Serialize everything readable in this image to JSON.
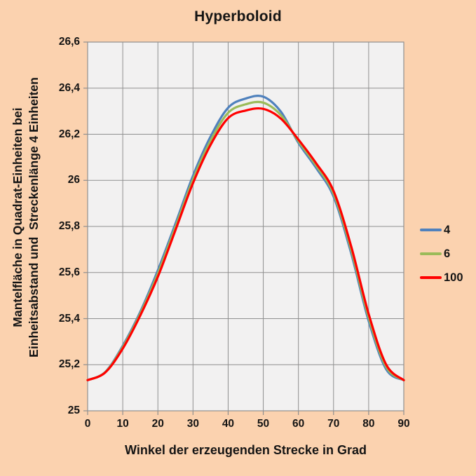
{
  "colors": {
    "background": "#FBD2AF",
    "plot_fill": "#F2F1F1",
    "grid": "#8F8F8F",
    "axis": "#8F8F8F",
    "text": "#141414",
    "series_4": "#4F81BD",
    "series_6": "#9BBB59",
    "series_100": "#FF0000"
  },
  "chart_data": {
    "type": "line",
    "title": "Hyperboloid",
    "xlabel": "Winkel der erzeugenden Strecke in Grad",
    "ylabel": [
      "Mantelfläche in Quadrat-Einheiten bei",
      "Einheitsabstand und  Streckenlänge 4 Einheiten"
    ],
    "xlim": [
      0,
      90
    ],
    "ylim": [
      25,
      26.6
    ],
    "grid": true,
    "legend_position": "right",
    "x_ticks": [
      {
        "value": 0,
        "label": "0"
      },
      {
        "value": 10,
        "label": "10"
      },
      {
        "value": 20,
        "label": "20"
      },
      {
        "value": 30,
        "label": "30"
      },
      {
        "value": 40,
        "label": "40"
      },
      {
        "value": 50,
        "label": "50"
      },
      {
        "value": 60,
        "label": "60"
      },
      {
        "value": 70,
        "label": "70"
      },
      {
        "value": 80,
        "label": "80"
      },
      {
        "value": 90,
        "label": "90"
      }
    ],
    "y_ticks": [
      {
        "value": 25,
        "label": "25"
      },
      {
        "value": 25.2,
        "label": "25,2"
      },
      {
        "value": 25.4,
        "label": "25,4"
      },
      {
        "value": 25.6,
        "label": "25,6"
      },
      {
        "value": 25.8,
        "label": "25,8"
      },
      {
        "value": 26,
        "label": "26"
      },
      {
        "value": 26.2,
        "label": "26,2"
      },
      {
        "value": 26.4,
        "label": "26,4"
      },
      {
        "value": 26.6,
        "label": "26,6"
      }
    ],
    "x": [
      0,
      5,
      10,
      15,
      20,
      25,
      30,
      35,
      40,
      45,
      50,
      55,
      60,
      65,
      70,
      75,
      80,
      85,
      90
    ],
    "series": [
      {
        "name": "4",
        "color": "#4F81BD",
        "values": [
          25.133,
          25.168,
          25.282,
          25.43,
          25.61,
          25.812,
          26.02,
          26.19,
          26.315,
          26.355,
          26.363,
          26.298,
          26.163,
          26.055,
          25.93,
          25.685,
          25.39,
          25.18,
          25.133
        ]
      },
      {
        "name": "6",
        "color": "#9BBB59",
        "values": [
          25.133,
          25.167,
          25.276,
          25.422,
          25.596,
          25.798,
          26.004,
          26.172,
          26.293,
          26.33,
          26.337,
          26.283,
          26.17,
          26.065,
          25.942,
          25.7,
          25.405,
          25.19,
          25.133
        ]
      },
      {
        "name": "100",
        "color": "#FF0000",
        "values": [
          25.133,
          25.166,
          25.27,
          25.414,
          25.582,
          25.784,
          25.988,
          26.154,
          26.27,
          26.303,
          26.31,
          26.268,
          26.177,
          26.075,
          25.954,
          25.715,
          25.42,
          25.2,
          25.133
        ]
      }
    ]
  }
}
